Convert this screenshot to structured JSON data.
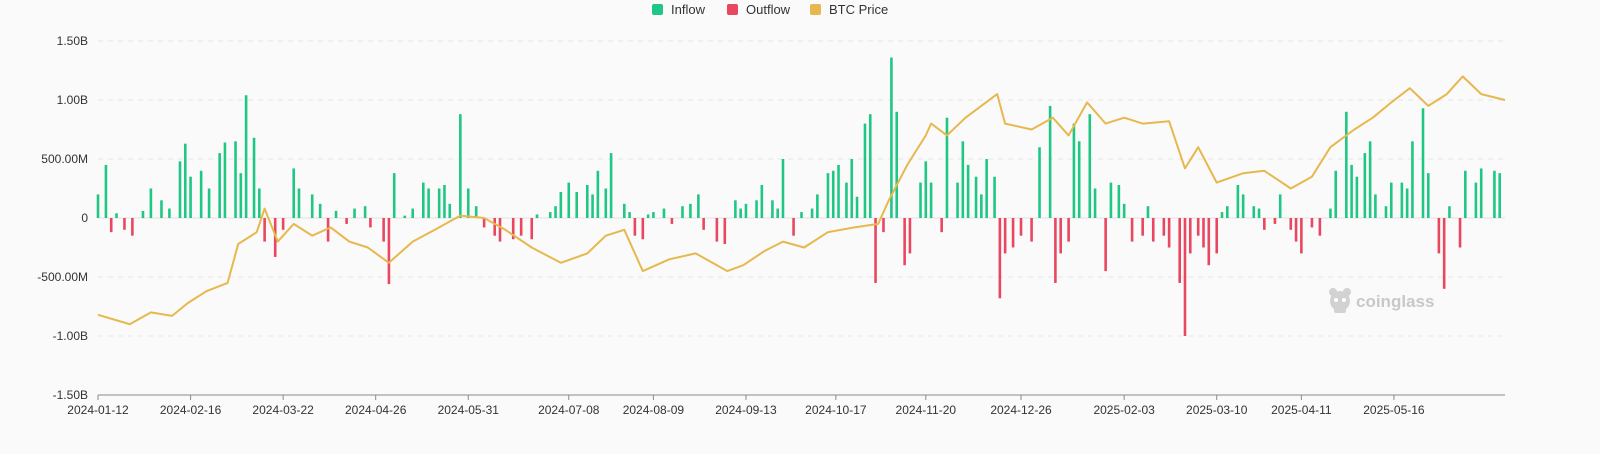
{
  "chart_data": {
    "type": "bar",
    "title": "",
    "xlabel": "",
    "ylabel": "",
    "ylim": [
      -1.5,
      1.5
    ],
    "y_unit": "billion USD",
    "y_ticks": [
      1.5,
      1.0,
      0.5,
      0,
      -0.5,
      -1.0,
      -1.5
    ],
    "y_tick_labels": [
      "1.50B",
      "1.00B",
      "500.00M",
      "0",
      "-500.00M",
      "-1.00B",
      "-1.50B"
    ],
    "x_tick_labels": [
      "2024-01-12",
      "2024-02-16",
      "2024-03-22",
      "2024-04-26",
      "2024-05-31",
      "2024-07-08",
      "2024-08-09",
      "2024-09-13",
      "2024-10-17",
      "2024-11-20",
      "2024-12-26",
      "2025-02-03",
      "2025-03-10",
      "2025-04-11",
      "2025-05-16"
    ],
    "x_range": [
      "2024-01-12",
      "2025-06-27"
    ],
    "grid": true,
    "legend_position": "top-center",
    "series": [
      {
        "name": "Inflow",
        "type": "bar",
        "color": "#20c784"
      },
      {
        "name": "Outflow",
        "type": "bar",
        "color": "#e8475f"
      },
      {
        "name": "BTC Price",
        "type": "line",
        "color": "#e6b84d"
      }
    ],
    "flow_points": [
      [
        "2024-01-12",
        0.2
      ],
      [
        "2024-01-15",
        0.45
      ],
      [
        "2024-01-17",
        -0.12
      ],
      [
        "2024-01-19",
        0.04
      ],
      [
        "2024-01-22",
        -0.1
      ],
      [
        "2024-01-25",
        -0.15
      ],
      [
        "2024-01-29",
        0.06
      ],
      [
        "2024-02-01",
        0.25
      ],
      [
        "2024-02-05",
        0.15
      ],
      [
        "2024-02-08",
        0.08
      ],
      [
        "2024-02-12",
        0.48
      ],
      [
        "2024-02-14",
        0.63
      ],
      [
        "2024-02-16",
        0.35
      ],
      [
        "2024-02-20",
        0.4
      ],
      [
        "2024-02-23",
        0.25
      ],
      [
        "2024-02-27",
        0.55
      ],
      [
        "2024-02-29",
        0.64
      ],
      [
        "2024-03-04",
        0.65
      ],
      [
        "2024-03-06",
        0.38
      ],
      [
        "2024-03-08",
        1.04
      ],
      [
        "2024-03-11",
        0.68
      ],
      [
        "2024-03-13",
        0.25
      ],
      [
        "2024-03-15",
        -0.2
      ],
      [
        "2024-03-19",
        -0.33
      ],
      [
        "2024-03-22",
        -0.1
      ],
      [
        "2024-03-26",
        0.42
      ],
      [
        "2024-03-28",
        0.25
      ],
      [
        "2024-04-02",
        0.2
      ],
      [
        "2024-04-05",
        0.12
      ],
      [
        "2024-04-08",
        -0.2
      ],
      [
        "2024-04-11",
        0.06
      ],
      [
        "2024-04-15",
        -0.05
      ],
      [
        "2024-04-18",
        0.08
      ],
      [
        "2024-04-22",
        0.1
      ],
      [
        "2024-04-24",
        -0.08
      ],
      [
        "2024-04-29",
        -0.2
      ],
      [
        "2024-05-01",
        -0.56
      ],
      [
        "2024-05-03",
        0.38
      ],
      [
        "2024-05-07",
        0.02
      ],
      [
        "2024-05-10",
        0.08
      ],
      [
        "2024-05-14",
        0.3
      ],
      [
        "2024-05-16",
        0.25
      ],
      [
        "2024-05-20",
        0.25
      ],
      [
        "2024-05-22",
        0.28
      ],
      [
        "2024-05-24",
        0.12
      ],
      [
        "2024-05-28",
        0.88
      ],
      [
        "2024-05-31",
        0.25
      ],
      [
        "2024-06-03",
        0.1
      ],
      [
        "2024-06-06",
        -0.08
      ],
      [
        "2024-06-10",
        -0.15
      ],
      [
        "2024-06-12",
        -0.2
      ],
      [
        "2024-06-17",
        -0.18
      ],
      [
        "2024-06-20",
        -0.15
      ],
      [
        "2024-06-24",
        -0.18
      ],
      [
        "2024-06-26",
        0.03
      ],
      [
        "2024-07-01",
        0.05
      ],
      [
        "2024-07-03",
        0.1
      ],
      [
        "2024-07-05",
        0.22
      ],
      [
        "2024-07-08",
        0.3
      ],
      [
        "2024-07-11",
        0.22
      ],
      [
        "2024-07-15",
        0.28
      ],
      [
        "2024-07-17",
        0.2
      ],
      [
        "2024-07-19",
        0.4
      ],
      [
        "2024-07-22",
        0.25
      ],
      [
        "2024-07-24",
        0.55
      ],
      [
        "2024-07-29",
        0.12
      ],
      [
        "2024-07-31",
        0.05
      ],
      [
        "2024-08-02",
        -0.15
      ],
      [
        "2024-08-05",
        -0.18
      ],
      [
        "2024-08-07",
        0.03
      ],
      [
        "2024-08-09",
        0.05
      ],
      [
        "2024-08-13",
        0.08
      ],
      [
        "2024-08-16",
        -0.05
      ],
      [
        "2024-08-20",
        0.1
      ],
      [
        "2024-08-23",
        0.12
      ],
      [
        "2024-08-26",
        0.2
      ],
      [
        "2024-08-28",
        -0.1
      ],
      [
        "2024-09-02",
        -0.2
      ],
      [
        "2024-09-05",
        -0.22
      ],
      [
        "2024-09-09",
        0.15
      ],
      [
        "2024-09-11",
        0.08
      ],
      [
        "2024-09-13",
        0.12
      ],
      [
        "2024-09-17",
        0.15
      ],
      [
        "2024-09-19",
        0.28
      ],
      [
        "2024-09-23",
        0.15
      ],
      [
        "2024-09-25",
        0.08
      ],
      [
        "2024-09-27",
        0.5
      ],
      [
        "2024-10-01",
        -0.15
      ],
      [
        "2024-10-04",
        0.05
      ],
      [
        "2024-10-08",
        0.08
      ],
      [
        "2024-10-10",
        0.2
      ],
      [
        "2024-10-14",
        0.38
      ],
      [
        "2024-10-16",
        0.4
      ],
      [
        "2024-10-18",
        0.45
      ],
      [
        "2024-10-21",
        0.3
      ],
      [
        "2024-10-23",
        0.5
      ],
      [
        "2024-10-25",
        0.18
      ],
      [
        "2024-10-28",
        0.8
      ],
      [
        "2024-10-30",
        0.88
      ],
      [
        "2024-11-01",
        -0.55
      ],
      [
        "2024-11-04",
        -0.12
      ],
      [
        "2024-11-07",
        1.36
      ],
      [
        "2024-11-09",
        0.9
      ],
      [
        "2024-11-12",
        -0.4
      ],
      [
        "2024-11-14",
        -0.3
      ],
      [
        "2024-11-18",
        0.3
      ],
      [
        "2024-11-20",
        0.48
      ],
      [
        "2024-11-22",
        0.3
      ],
      [
        "2024-11-26",
        -0.12
      ],
      [
        "2024-11-28",
        0.85
      ],
      [
        "2024-12-02",
        0.3
      ],
      [
        "2024-12-04",
        0.65
      ],
      [
        "2024-12-06",
        0.45
      ],
      [
        "2024-12-09",
        0.35
      ],
      [
        "2024-12-11",
        0.2
      ],
      [
        "2024-12-13",
        0.5
      ],
      [
        "2024-12-16",
        0.35
      ],
      [
        "2024-12-18",
        -0.68
      ],
      [
        "2024-12-20",
        -0.3
      ],
      [
        "2024-12-23",
        -0.25
      ],
      [
        "2024-12-26",
        -0.15
      ],
      [
        "2024-12-30",
        -0.2
      ],
      [
        "2025-01-02",
        0.6
      ],
      [
        "2025-01-06",
        0.95
      ],
      [
        "2025-01-08",
        -0.55
      ],
      [
        "2025-01-10",
        -0.3
      ],
      [
        "2025-01-13",
        -0.2
      ],
      [
        "2025-01-15",
        0.8
      ],
      [
        "2025-01-17",
        0.65
      ],
      [
        "2025-01-21",
        0.88
      ],
      [
        "2025-01-23",
        0.25
      ],
      [
        "2025-01-27",
        -0.45
      ],
      [
        "2025-01-29",
        0.3
      ],
      [
        "2025-02-01",
        0.28
      ],
      [
        "2025-02-03",
        0.12
      ],
      [
        "2025-02-06",
        -0.2
      ],
      [
        "2025-02-10",
        -0.15
      ],
      [
        "2025-02-12",
        0.1
      ],
      [
        "2025-02-14",
        -0.2
      ],
      [
        "2025-02-18",
        -0.15
      ],
      [
        "2025-02-20",
        -0.25
      ],
      [
        "2025-02-24",
        -0.55
      ],
      [
        "2025-02-26",
        -1.0
      ],
      [
        "2025-02-28",
        -0.3
      ],
      [
        "2025-03-03",
        -0.15
      ],
      [
        "2025-03-05",
        -0.25
      ],
      [
        "2025-03-07",
        -0.4
      ],
      [
        "2025-03-10",
        -0.3
      ],
      [
        "2025-03-12",
        0.05
      ],
      [
        "2025-03-14",
        0.1
      ],
      [
        "2025-03-18",
        0.28
      ],
      [
        "2025-03-20",
        0.2
      ],
      [
        "2025-03-24",
        0.1
      ],
      [
        "2025-03-26",
        0.08
      ],
      [
        "2025-03-28",
        -0.1
      ],
      [
        "2025-04-01",
        -0.05
      ],
      [
        "2025-04-03",
        0.2
      ],
      [
        "2025-04-07",
        -0.1
      ],
      [
        "2025-04-09",
        -0.2
      ],
      [
        "2025-04-11",
        -0.3
      ],
      [
        "2025-04-15",
        -0.08
      ],
      [
        "2025-04-18",
        -0.15
      ],
      [
        "2025-04-22",
        0.08
      ],
      [
        "2025-04-24",
        0.4
      ],
      [
        "2025-04-28",
        0.9
      ],
      [
        "2025-04-30",
        0.45
      ],
      [
        "2025-05-02",
        0.35
      ],
      [
        "2025-05-05",
        0.55
      ],
      [
        "2025-05-07",
        0.65
      ],
      [
        "2025-05-09",
        0.2
      ],
      [
        "2025-05-13",
        0.1
      ],
      [
        "2025-05-15",
        0.3
      ],
      [
        "2025-05-19",
        0.3
      ],
      [
        "2025-05-21",
        0.25
      ],
      [
        "2025-05-23",
        0.65
      ],
      [
        "2025-05-27",
        0.93
      ],
      [
        "2025-05-29",
        0.38
      ],
      [
        "2025-06-02",
        -0.3
      ],
      [
        "2025-06-04",
        -0.6
      ],
      [
        "2025-06-06",
        0.1
      ],
      [
        "2025-06-10",
        -0.25
      ],
      [
        "2025-06-12",
        0.4
      ],
      [
        "2025-06-16",
        0.3
      ],
      [
        "2025-06-18",
        0.42
      ],
      [
        "2025-06-23",
        0.4
      ],
      [
        "2025-06-25",
        0.38
      ]
    ],
    "btc_price_points": [
      [
        "2024-01-12",
        -0.82
      ],
      [
        "2024-01-18",
        -0.86
      ],
      [
        "2024-01-24",
        -0.9
      ],
      [
        "2024-02-01",
        -0.8
      ],
      [
        "2024-02-09",
        -0.83
      ],
      [
        "2024-02-15",
        -0.72
      ],
      [
        "2024-02-22",
        -0.62
      ],
      [
        "2024-03-01",
        -0.55
      ],
      [
        "2024-03-05",
        -0.22
      ],
      [
        "2024-03-12",
        -0.12
      ],
      [
        "2024-03-15",
        0.08
      ],
      [
        "2024-03-20",
        -0.2
      ],
      [
        "2024-03-26",
        -0.05
      ],
      [
        "2024-04-02",
        -0.15
      ],
      [
        "2024-04-09",
        -0.08
      ],
      [
        "2024-04-16",
        -0.2
      ],
      [
        "2024-04-23",
        -0.25
      ],
      [
        "2024-05-01",
        -0.38
      ],
      [
        "2024-05-10",
        -0.2
      ],
      [
        "2024-05-20",
        -0.08
      ],
      [
        "2024-05-28",
        0.02
      ],
      [
        "2024-06-06",
        0.0
      ],
      [
        "2024-06-14",
        -0.1
      ],
      [
        "2024-06-24",
        -0.25
      ],
      [
        "2024-07-05",
        -0.38
      ],
      [
        "2024-07-15",
        -0.3
      ],
      [
        "2024-07-22",
        -0.15
      ],
      [
        "2024-07-29",
        -0.1
      ],
      [
        "2024-08-05",
        -0.45
      ],
      [
        "2024-08-15",
        -0.35
      ],
      [
        "2024-08-25",
        -0.3
      ],
      [
        "2024-09-06",
        -0.45
      ],
      [
        "2024-09-12",
        -0.4
      ],
      [
        "2024-09-20",
        -0.28
      ],
      [
        "2024-09-27",
        -0.2
      ],
      [
        "2024-10-05",
        -0.25
      ],
      [
        "2024-10-14",
        -0.12
      ],
      [
        "2024-10-24",
        -0.08
      ],
      [
        "2024-11-02",
        -0.05
      ],
      [
        "2024-11-06",
        0.15
      ],
      [
        "2024-11-13",
        0.45
      ],
      [
        "2024-11-20",
        0.7
      ],
      [
        "2024-11-22",
        0.8
      ],
      [
        "2024-11-28",
        0.7
      ],
      [
        "2024-12-05",
        0.85
      ],
      [
        "2024-12-17",
        1.05
      ],
      [
        "2024-12-20",
        0.8
      ],
      [
        "2024-12-30",
        0.75
      ],
      [
        "2025-01-07",
        0.85
      ],
      [
        "2025-01-13",
        0.7
      ],
      [
        "2025-01-20",
        0.98
      ],
      [
        "2025-01-27",
        0.8
      ],
      [
        "2025-02-03",
        0.85
      ],
      [
        "2025-02-10",
        0.8
      ],
      [
        "2025-02-20",
        0.82
      ],
      [
        "2025-02-26",
        0.42
      ],
      [
        "2025-03-03",
        0.6
      ],
      [
        "2025-03-10",
        0.3
      ],
      [
        "2025-03-20",
        0.38
      ],
      [
        "2025-03-28",
        0.4
      ],
      [
        "2025-04-07",
        0.25
      ],
      [
        "2025-04-15",
        0.35
      ],
      [
        "2025-04-22",
        0.6
      ],
      [
        "2025-05-01",
        0.75
      ],
      [
        "2025-05-08",
        0.85
      ],
      [
        "2025-05-15",
        0.98
      ],
      [
        "2025-05-22",
        1.1
      ],
      [
        "2025-05-29",
        0.95
      ],
      [
        "2025-06-05",
        1.05
      ],
      [
        "2025-06-11",
        1.2
      ],
      [
        "2025-06-18",
        1.05
      ],
      [
        "2025-06-27",
        1.0
      ]
    ],
    "watermark": "coinglass"
  }
}
